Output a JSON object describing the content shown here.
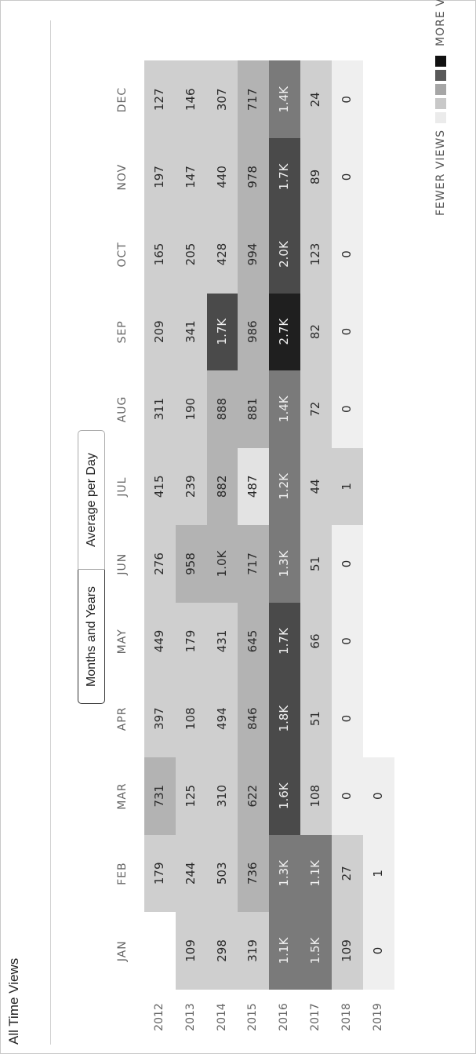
{
  "title": "All Time Views",
  "toggle": {
    "options": [
      "Months and Years",
      "Average per Day"
    ],
    "selected": "Months and Years"
  },
  "legend": {
    "fewer": "FEWER VIEWS",
    "more": "MORE VIEWS",
    "colors": [
      "#ebebeb",
      "#c8c8c8",
      "#a6a6a6",
      "#595959",
      "#111111"
    ]
  },
  "chart_data": {
    "type": "heatmap",
    "months": [
      "JAN",
      "FEB",
      "MAR",
      "APR",
      "MAY",
      "JUN",
      "JUL",
      "AUG",
      "SEP",
      "OCT",
      "NOV",
      "DEC"
    ],
    "years": [
      "2012",
      "2013",
      "2014",
      "2015",
      "2016",
      "2017",
      "2018",
      "2019"
    ],
    "cells": [
      [
        "",
        "179",
        "731",
        "397",
        "449",
        "276",
        "415",
        "311",
        "209",
        "165",
        "197",
        "127"
      ],
      [
        "109",
        "244",
        "125",
        "108",
        "179",
        "958",
        "239",
        "190",
        "341",
        "205",
        "147",
        "146"
      ],
      [
        "298",
        "503",
        "310",
        "494",
        "431",
        "1.0K",
        "882",
        "888",
        "1.7K",
        "428",
        "440",
        "307"
      ],
      [
        "319",
        "736",
        "622",
        "846",
        "645",
        "717",
        "487",
        "881",
        "986",
        "994",
        "978",
        "717"
      ],
      [
        "1.1K",
        "1.3K",
        "1.6K",
        "1.8K",
        "1.7K",
        "1.3K",
        "1.2K",
        "1.4K",
        "2.7K",
        "2.0K",
        "1.7K",
        "1.4K"
      ],
      [
        "1.5K",
        "1.1K",
        "108",
        "51",
        "66",
        "51",
        "44",
        "72",
        "82",
        "123",
        "89",
        "24"
      ],
      [
        "109",
        "27",
        "0",
        "0",
        "0",
        "0",
        "1",
        "0",
        "0",
        "0",
        "0",
        "0"
      ],
      [
        "0",
        "1",
        "0",
        null,
        null,
        null,
        null,
        null,
        null,
        null,
        null,
        null
      ]
    ],
    "colors": [
      [
        null,
        "#cfcfcf",
        "#b3b3b3",
        "#cfcfcf",
        "#cfcfcf",
        "#cfcfcf",
        "#cfcfcf",
        "#cfcfcf",
        "#cfcfcf",
        "#cfcfcf",
        "#cfcfcf",
        "#cfcfcf"
      ],
      [
        "#cfcfcf",
        "#cfcfcf",
        "#cfcfcf",
        "#cfcfcf",
        "#cfcfcf",
        "#b3b3b3",
        "#cfcfcf",
        "#cfcfcf",
        "#cfcfcf",
        "#cfcfcf",
        "#cfcfcf",
        "#cfcfcf"
      ],
      [
        "#cfcfcf",
        "#cfcfcf",
        "#cfcfcf",
        "#cfcfcf",
        "#cfcfcf",
        "#b3b3b3",
        "#b3b3b3",
        "#b3b3b3",
        "#4a4a4a",
        "#cfcfcf",
        "#cfcfcf",
        "#cfcfcf"
      ],
      [
        "#cfcfcf",
        "#b3b3b3",
        "#b3b3b3",
        "#b3b3b3",
        "#b3b3b3",
        "#b3b3b3",
        "#e3e3e3",
        "#b3b3b3",
        "#b3b3b3",
        "#b3b3b3",
        "#b3b3b3",
        "#b3b3b3"
      ],
      [
        "#7a7a7a",
        "#7a7a7a",
        "#4a4a4a",
        "#4a4a4a",
        "#4a4a4a",
        "#7a7a7a",
        "#7a7a7a",
        "#7a7a7a",
        "#1f1f1f",
        "#4a4a4a",
        "#4a4a4a",
        "#7a7a7a"
      ],
      [
        "#7a7a7a",
        "#7a7a7a",
        "#cfcfcf",
        "#cfcfcf",
        "#cfcfcf",
        "#cfcfcf",
        "#cfcfcf",
        "#cfcfcf",
        "#cfcfcf",
        "#cfcfcf",
        "#cfcfcf",
        "#cfcfcf"
      ],
      [
        "#cfcfcf",
        "#cfcfcf",
        "#efefef",
        "#efefef",
        "#efefef",
        "#efefef",
        "#cfcfcf",
        "#efefef",
        "#efefef",
        "#efefef",
        "#efefef",
        "#efefef"
      ],
      [
        "#efefef",
        "#efefef",
        "#efefef",
        null,
        null,
        null,
        null,
        null,
        null,
        null,
        null,
        null
      ]
    ]
  }
}
